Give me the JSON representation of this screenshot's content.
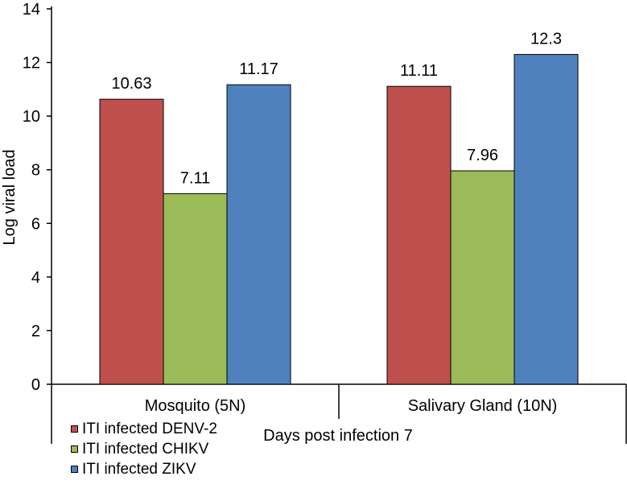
{
  "chart_data": {
    "type": "bar",
    "title": "",
    "ylabel": "Log viral load",
    "xlabel": "Days post infection 7",
    "ylim": [
      0,
      14
    ],
    "yticks": [
      0,
      2,
      4,
      6,
      8,
      10,
      12,
      14
    ],
    "categories": [
      "Mosquito (5N)",
      "Salivary Gland (10N)"
    ],
    "series": [
      {
        "name": "ITI infected DENV-2",
        "values": [
          10.63,
          11.11
        ],
        "labels": [
          "10.63",
          "11.11"
        ],
        "color": "#c0504d"
      },
      {
        "name": "ITI infected CHIKV",
        "values": [
          7.11,
          7.96
        ],
        "labels": [
          "7.11",
          "7.96"
        ],
        "color": "#9bbb59"
      },
      {
        "name": "ITI infected ZIKV",
        "values": [
          11.17,
          12.3
        ],
        "labels": [
          "11.17",
          "12.3"
        ],
        "color": "#4f81bd"
      }
    ],
    "legend_position": "bottom-left"
  }
}
